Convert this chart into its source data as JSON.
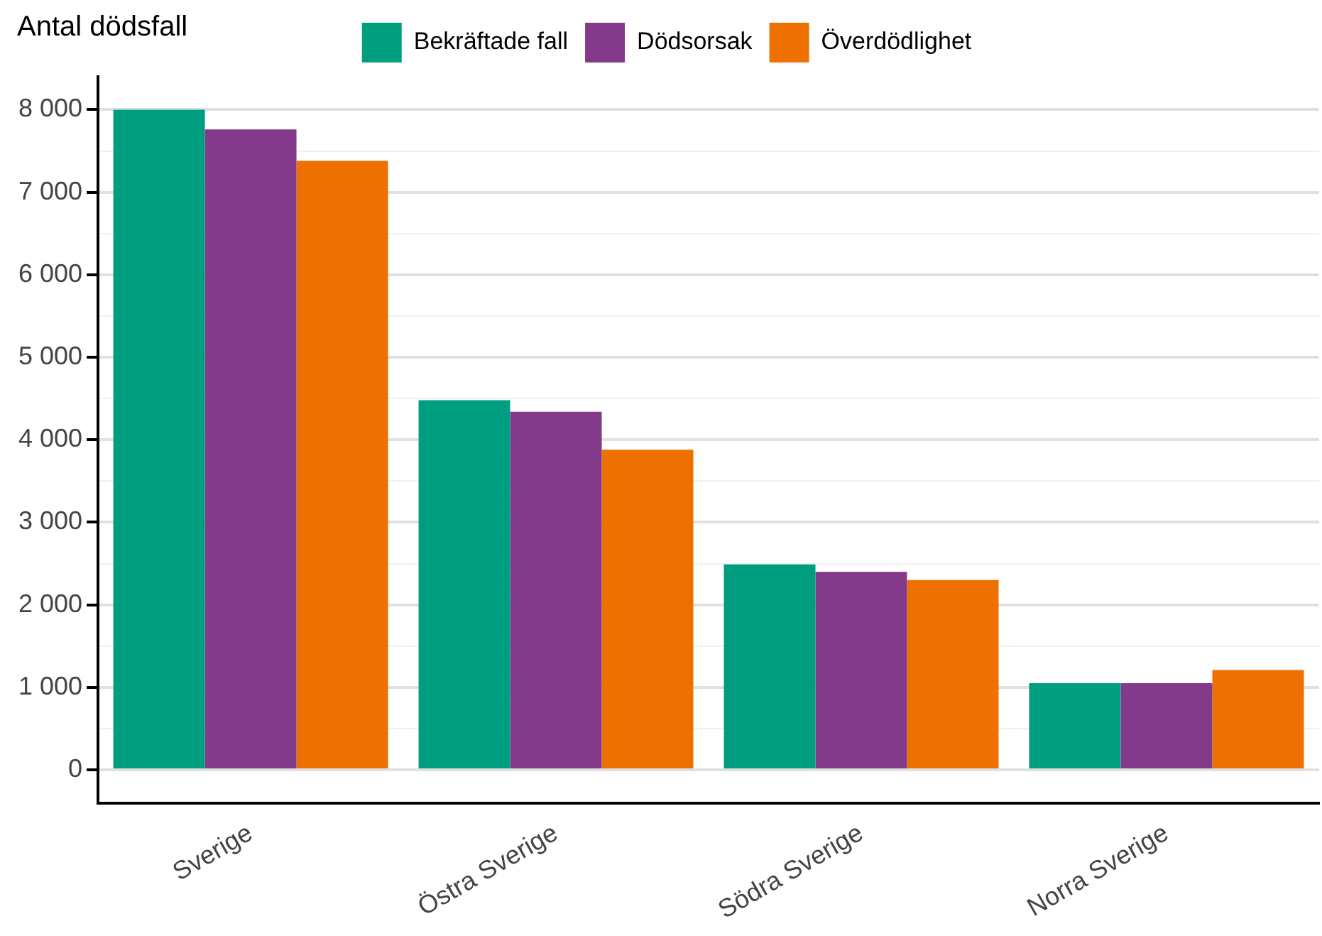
{
  "chart_data": {
    "type": "bar",
    "ylabel": "Antal dödsfall",
    "categories": [
      "Sverige",
      "Östra Sverige",
      "Södra Sverige",
      "Norra Sverige"
    ],
    "series": [
      {
        "name": "Bekräftade fall",
        "color": "#009e80",
        "values": [
          8000,
          4480,
          2490,
          1050
        ]
      },
      {
        "name": "Dödsorsak",
        "color": "#833a8a",
        "values": [
          7760,
          4340,
          2400,
          1050
        ]
      },
      {
        "name": "Överdödlighet",
        "color": "#ee7100",
        "values": [
          7380,
          3880,
          2300,
          1210
        ]
      }
    ],
    "ylim": [
      -400,
      8400
    ],
    "yticks": [
      {
        "value": 0,
        "label": "0"
      },
      {
        "value": 500,
        "label": null
      },
      {
        "value": 1000,
        "label": "1 000"
      },
      {
        "value": 1500,
        "label": null
      },
      {
        "value": 2000,
        "label": "2 000"
      },
      {
        "value": 2500,
        "label": null
      },
      {
        "value": 3000,
        "label": "3 000"
      },
      {
        "value": 3500,
        "label": null
      },
      {
        "value": 4000,
        "label": "4 000"
      },
      {
        "value": 4500,
        "label": null
      },
      {
        "value": 5000,
        "label": "5 000"
      },
      {
        "value": 5500,
        "label": null
      },
      {
        "value": 6000,
        "label": "6 000"
      },
      {
        "value": 6500,
        "label": null
      },
      {
        "value": 7000,
        "label": "7 000"
      },
      {
        "value": 7500,
        "label": null
      },
      {
        "value": 8000,
        "label": "8 000"
      }
    ],
    "grid": "y",
    "legend": "top"
  }
}
